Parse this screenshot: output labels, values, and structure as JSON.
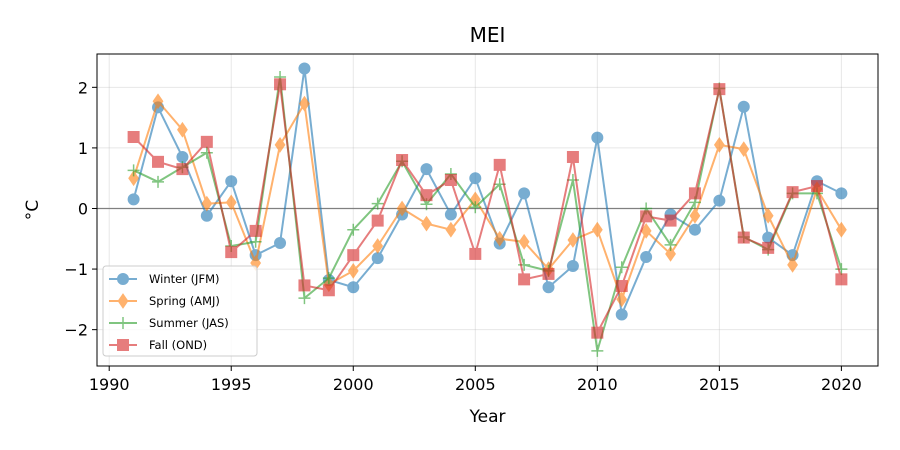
{
  "chart_data": {
    "type": "line",
    "title": "MEI",
    "xlabel": "Year",
    "ylabel": "$^\\circ$C",
    "ylabel_display": "°C",
    "xlim": [
      1989.5,
      2021.5
    ],
    "ylim": [
      -2.6,
      2.55
    ],
    "xticks": [
      1990,
      1995,
      2000,
      2005,
      2010,
      2015,
      2020
    ],
    "yticks": [
      -2,
      -1,
      0,
      1,
      2
    ],
    "xtick_labels": [
      "1990",
      "1995",
      "2000",
      "2005",
      "2010",
      "2015",
      "2020"
    ],
    "ytick_labels": [
      "−2",
      "−1",
      "0",
      "1",
      "2"
    ],
    "grid": true,
    "zero_line": true,
    "legend_position": "lower-left",
    "x": [
      1991,
      1992,
      1993,
      1994,
      1995,
      1996,
      1997,
      1998,
      1999,
      2000,
      2001,
      2002,
      2003,
      2004,
      2005,
      2006,
      2007,
      2008,
      2009,
      2010,
      2011,
      2012,
      2013,
      2014,
      2015,
      2016,
      2017,
      2018,
      2019,
      2020
    ],
    "series": [
      {
        "name": "Winter (JFM)",
        "color": "#1f77b4",
        "marker": "circle",
        "values": [
          0.15,
          1.67,
          0.85,
          -0.12,
          0.45,
          -0.77,
          -0.57,
          2.31,
          -1.18,
          -1.3,
          -0.82,
          -0.1,
          0.65,
          -0.1,
          0.5,
          -0.58,
          0.25,
          -1.3,
          -0.95,
          1.17,
          -1.75,
          -0.8,
          -0.1,
          -0.35,
          0.13,
          1.68,
          -0.48,
          -0.77,
          0.45,
          0.25
        ]
      },
      {
        "name": "Spring (AMJ)",
        "color": "#ff7f0e",
        "marker": "diamond",
        "values": [
          0.5,
          1.77,
          1.3,
          0.08,
          0.1,
          -0.9,
          1.05,
          1.73,
          -1.25,
          -1.03,
          -0.62,
          0.0,
          -0.25,
          -0.35,
          0.15,
          -0.5,
          -0.55,
          -1.0,
          -0.52,
          -0.35,
          -1.5,
          -0.37,
          -0.75,
          -0.12,
          1.05,
          0.98,
          -0.12,
          -0.93,
          0.32,
          -0.35
        ]
      },
      {
        "name": "Summer (JAS)",
        "color": "#2ca02c",
        "marker": "plus",
        "values": [
          0.63,
          0.44,
          0.68,
          0.92,
          -0.62,
          -0.55,
          2.17,
          -1.48,
          -1.15,
          -0.35,
          0.08,
          0.78,
          0.07,
          0.57,
          0.02,
          0.4,
          -0.93,
          -1.03,
          0.47,
          -2.35,
          -0.97,
          0.0,
          -0.6,
          0.1,
          1.98,
          -0.47,
          -0.68,
          0.25,
          0.25,
          -1.0
        ]
      },
      {
        "name": "Fall (OND)",
        "color": "#d62728",
        "marker": "square",
        "values": [
          1.18,
          0.77,
          0.65,
          1.1,
          -0.72,
          -0.37,
          2.05,
          -1.27,
          -1.35,
          -0.77,
          -0.2,
          0.8,
          0.22,
          0.47,
          -0.75,
          0.72,
          -1.17,
          -1.08,
          0.85,
          -2.05,
          -1.28,
          -0.13,
          -0.2,
          0.25,
          1.97,
          -0.48,
          -0.65,
          0.27,
          0.37,
          -1.17
        ]
      }
    ]
  }
}
